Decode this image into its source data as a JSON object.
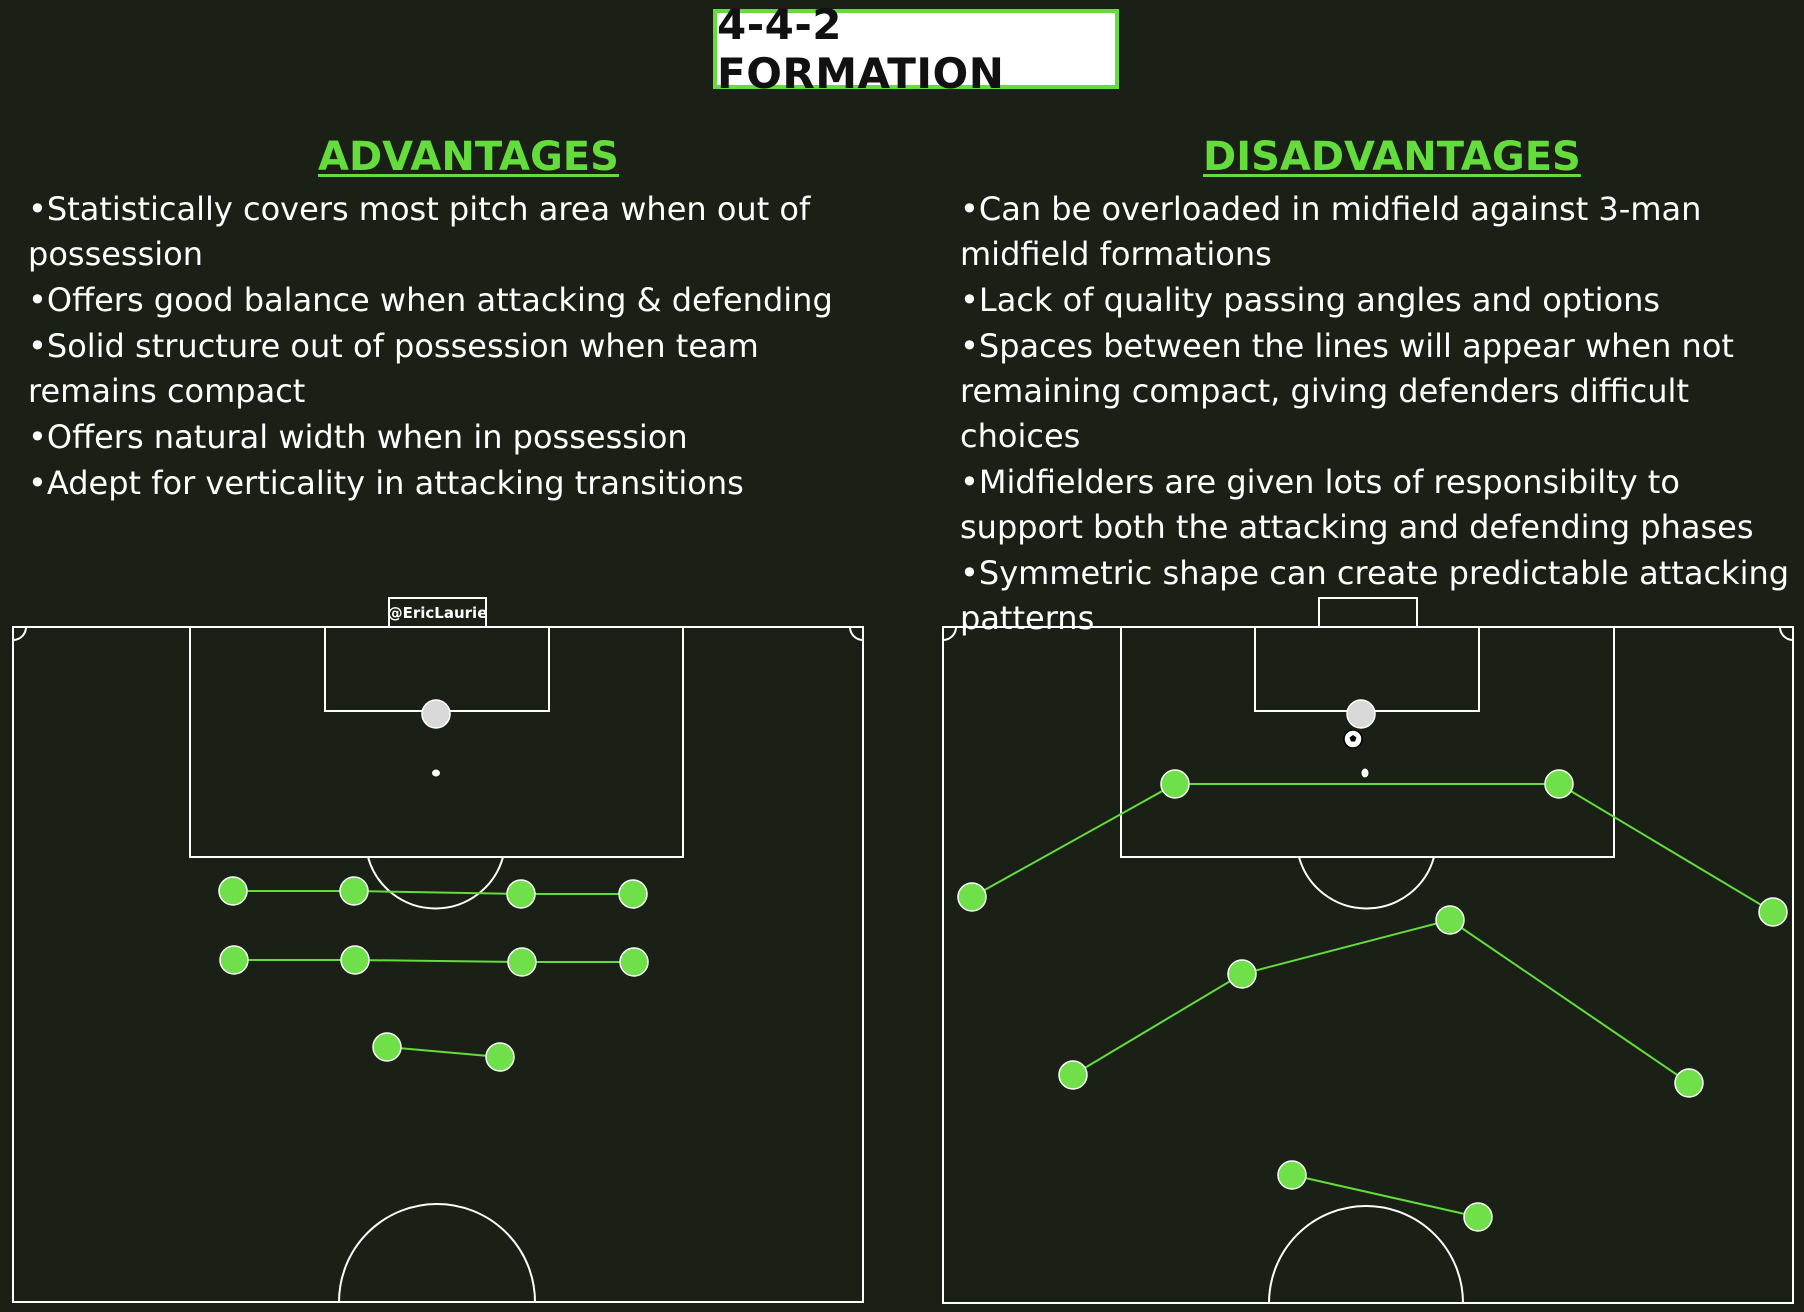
{
  "title": "4-4-2 FORMATION",
  "advantages": {
    "heading": "ADVANTAGES",
    "items": [
      "•Statistically covers most pitch area when out of possession",
      "•Offers good balance when attacking & defending",
      "•Solid structure out of possession when team remains compact",
      "•Offers natural width when in possession",
      "•Adept for verticality in attacking transitions"
    ]
  },
  "disadvantages": {
    "heading": "DISADVANTAGES",
    "items": [
      "•Can be overloaded in midfield against 3-man midfield formations",
      "•Lack of quality passing angles and options",
      "•Spaces between the lines will appear when not remaining compact, giving defenders difficult choices",
      "•Midfielders are given lots of responsibilty to support both the attacking and defending phases",
      "•Symmetric  shape can create predictable attacking patterns"
    ]
  },
  "watermark": "@EricLaurie",
  "colors": {
    "background": "#1a2015",
    "accent_green": "#63dc3c",
    "player_fill": "#6fe04a",
    "goalkeeper_fill": "#d9d9d9",
    "line_white": "#ffffff"
  },
  "icons": {
    "ball": "soccer-ball-icon"
  }
}
